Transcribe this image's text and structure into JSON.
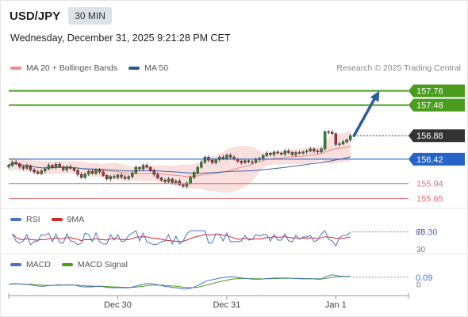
{
  "header": {
    "symbol": "USD/JPY",
    "timeframe": "30 MIN"
  },
  "datetime": "Wednesday, December 31, 2025 9:21:28 PM CET",
  "legend": [
    {
      "label": "MA 20 + Bollinger Bands",
      "color": "#f28b82"
    },
    {
      "label": "MA 50",
      "color": "#2f5597"
    }
  ],
  "credit": "Research © 2025 Trading Central",
  "colors": {
    "target": "#4a9d1c",
    "support": "#2563c9",
    "lower": "#e57373",
    "arrow": "#2e5c9a",
    "current": "#333333",
    "bollinger_fill": "#f8d7d4",
    "ma20": "#e88e88",
    "ma50": "#3c64a8",
    "candle_up": "#2d8a30",
    "candle_down": "#b03030"
  },
  "chart_data": [
    {
      "type": "candlestick",
      "title": "USD/JPY 30 MIN",
      "ylim": [
        155.5,
        158.05
      ],
      "x_tick_labels": [
        "Dec 30",
        "Dec 31",
        "Jan 1"
      ],
      "x_tick_positions": [
        30,
        60,
        90
      ],
      "levels": [
        {
          "value": 157.76,
          "label": "157.76",
          "kind": "target"
        },
        {
          "value": 157.48,
          "label": "157.48",
          "kind": "target"
        },
        {
          "value": 156.88,
          "label": "156.88",
          "kind": "current"
        },
        {
          "value": 156.42,
          "label": "156.42",
          "kind": "support"
        },
        {
          "value": 155.94,
          "label": "155.94",
          "kind": "lower"
        },
        {
          "value": 155.65,
          "label": "155.65",
          "kind": "lower"
        }
      ],
      "projection": {
        "from": [
          95,
          156.88
        ],
        "to": [
          102,
          157.76
        ]
      },
      "closes": [
        156.3,
        156.36,
        156.33,
        156.27,
        156.24,
        156.29,
        156.21,
        156.17,
        156.14,
        156.19,
        156.23,
        156.3,
        156.26,
        156.32,
        156.27,
        156.21,
        156.27,
        156.24,
        156.2,
        156.12,
        156.06,
        156.13,
        156.18,
        156.14,
        156.21,
        156.17,
        156.1,
        156.03,
        156.08,
        156.06,
        156.11,
        156.07,
        156.04,
        156.08,
        156.15,
        156.26,
        156.23,
        156.3,
        156.26,
        156.2,
        156.12,
        156.05,
        156.01,
        155.98,
        156.03,
        155.96,
        155.99,
        155.92,
        155.89,
        155.95,
        156.06,
        156.16,
        156.26,
        156.36,
        156.46,
        156.4,
        156.35,
        156.41,
        156.46,
        156.43,
        156.5,
        156.46,
        156.42,
        156.38,
        156.35,
        156.39,
        156.37,
        156.36,
        156.41,
        156.44,
        156.49,
        156.54,
        156.51,
        156.56,
        156.54,
        156.52,
        156.58,
        156.55,
        156.51,
        156.55,
        156.54,
        156.56,
        156.58,
        156.62,
        156.58,
        156.56,
        156.62,
        156.96,
        156.95,
        156.92,
        156.71,
        156.72,
        156.76,
        156.8,
        156.88
      ]
    },
    {
      "type": "line",
      "title": "RSI",
      "series": [
        {
          "name": "RSI",
          "color": "#4a72c8"
        },
        {
          "name": "9MA",
          "color": "#d62424"
        }
      ],
      "current_value": "65.30",
      "tick_labels": [
        "70",
        "30"
      ]
    },
    {
      "type": "line",
      "title": "MACD",
      "series": [
        {
          "name": "MACD",
          "color": "#4a72c8"
        },
        {
          "name": "MACD Signal",
          "color": "#4a9d1c"
        }
      ],
      "current_value": "0.09",
      "tick_labels": [
        "0"
      ]
    }
  ]
}
